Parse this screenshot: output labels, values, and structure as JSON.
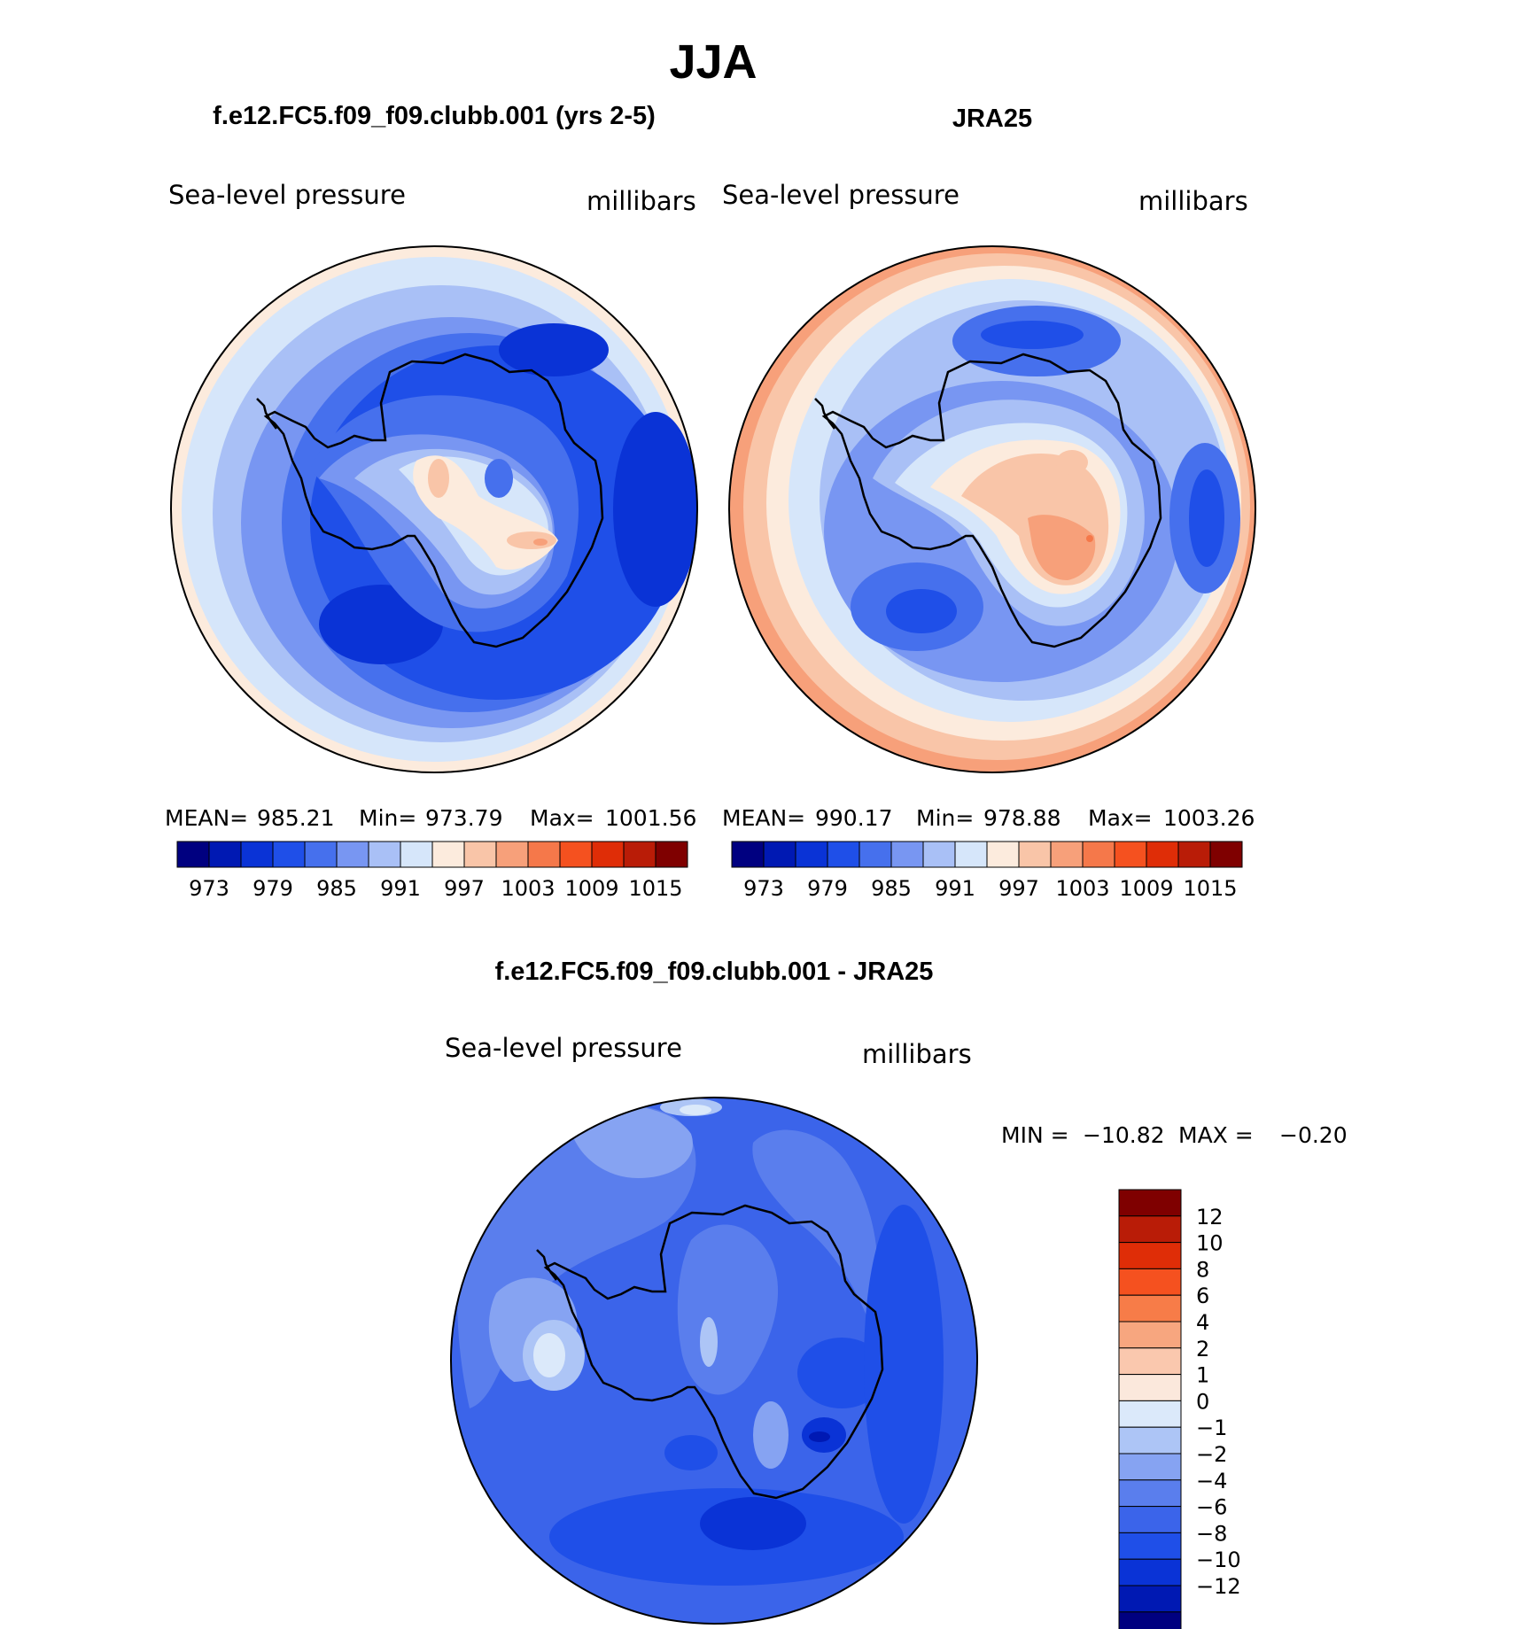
{
  "figure": {
    "title": "JJA",
    "panel_left_title": "f.e12.FC5.f09_f09.clubb.001 (yrs 2-5)",
    "panel_right_title": "JRA25",
    "panel_diff_title": "f.e12.FC5.f09_f09.clubb.001 - JRA25"
  },
  "colors": {
    "abs_levels": [
      "#000080",
      "#0019b3",
      "#0a33d6",
      "#1f4fe8",
      "#4670ed",
      "#7896f2",
      "#a9c0f6",
      "#d6e6fa",
      "#fcebdd",
      "#f9c5a8",
      "#f7a07a",
      "#f5784a",
      "#f5511f",
      "#df2d07",
      "#b91c07",
      "#7f0000"
    ],
    "diff_levels": [
      "#7f0000",
      "#b91c07",
      "#df2d07",
      "#f5511f",
      "#f77c48",
      "#f7a67f",
      "#fac8ae",
      "#fbe8dc",
      "#dbe9fa",
      "#adc5f6",
      "#86a3f2",
      "#5a7eed",
      "#3b64ea",
      "#1f4fe8",
      "#0a33d6",
      "#0019b3",
      "#000080"
    ],
    "coastline": "#000000"
  },
  "chart_data": [
    {
      "type": "heatmap",
      "projection": "south-polar-stereographic",
      "title": "f.e12.FC5.f09_f09.clubb.001 (yrs 2-5)",
      "variable": "Sea-level pressure",
      "units": "millibars",
      "mean": "985.21",
      "min": "973.79",
      "max": "1001.56",
      "stats_labels": {
        "mean": "MEAN=",
        "min": "Min=",
        "max": "Max="
      },
      "colorbar_ticks": [
        "973",
        "979",
        "985",
        "991",
        "997",
        "1003",
        "1009",
        "1015"
      ],
      "num_levels": 16
    },
    {
      "type": "heatmap",
      "projection": "south-polar-stereographic",
      "title": "JRA25",
      "variable": "Sea-level pressure",
      "units": "millibars",
      "mean": "990.17",
      "min": "978.88",
      "max": "1003.26",
      "stats_labels": {
        "mean": "MEAN=",
        "min": "Min=",
        "max": "Max="
      },
      "colorbar_ticks": [
        "973",
        "979",
        "985",
        "991",
        "997",
        "1003",
        "1009",
        "1015"
      ],
      "num_levels": 16
    },
    {
      "type": "heatmap",
      "projection": "south-polar-stereographic",
      "title": "f.e12.FC5.f09_f09.clubb.001 - JRA25",
      "variable": "Sea-level pressure",
      "units": "millibars",
      "min_label": "MIN =",
      "min": "−10.82",
      "max_label": "MAX =",
      "max": "−0.20",
      "colorbar_ticks": [
        "12",
        "10",
        "8",
        "6",
        "4",
        "2",
        "1",
        "0",
        "−1",
        "−2",
        "−4",
        "−6",
        "−8",
        "−10",
        "−12"
      ]
    }
  ]
}
